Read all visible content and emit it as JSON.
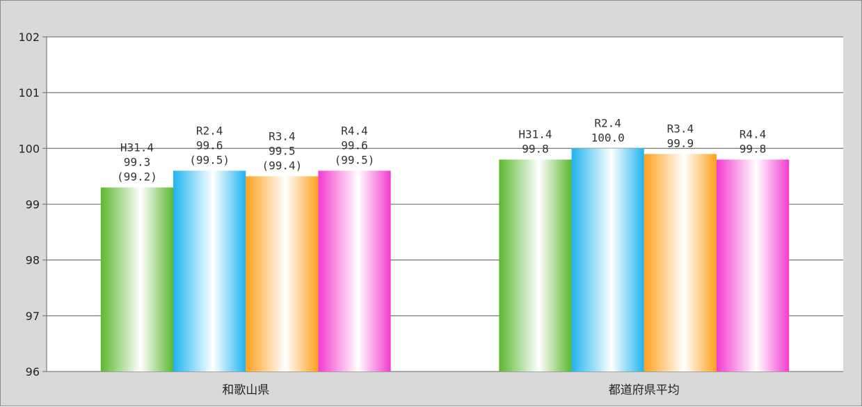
{
  "chart_data": {
    "type": "bar",
    "categories": [
      "和歌山県",
      "都道府県平均"
    ],
    "ylim": [
      96,
      102
    ],
    "yticks": [
      96,
      97,
      98,
      99,
      100,
      101,
      102
    ],
    "grid": true,
    "series": [
      {
        "color": "#5cb82e",
        "values": [
          99.3,
          99.8
        ],
        "labels": [
          [
            "H31.4",
            "99.3",
            "(99.2)"
          ],
          [
            "H31.4",
            "99.8"
          ]
        ]
      },
      {
        "color": "#1fb4ef",
        "values": [
          99.6,
          100.0
        ],
        "labels": [
          [
            "R2.4",
            "99.6",
            "(99.5)"
          ],
          [
            "R2.4",
            "100.0"
          ]
        ]
      },
      {
        "color": "#ffa01e",
        "values": [
          99.5,
          99.9
        ],
        "labels": [
          [
            "R3.4",
            "99.5",
            "(99.4)"
          ],
          [
            "R3.4",
            "99.9"
          ]
        ]
      },
      {
        "color": "#f33bd0",
        "values": [
          99.6,
          99.8
        ],
        "labels": [
          [
            "R4.4",
            "99.6",
            "(99.5)"
          ],
          [
            "R4.4",
            "99.8"
          ]
        ]
      }
    ]
  }
}
